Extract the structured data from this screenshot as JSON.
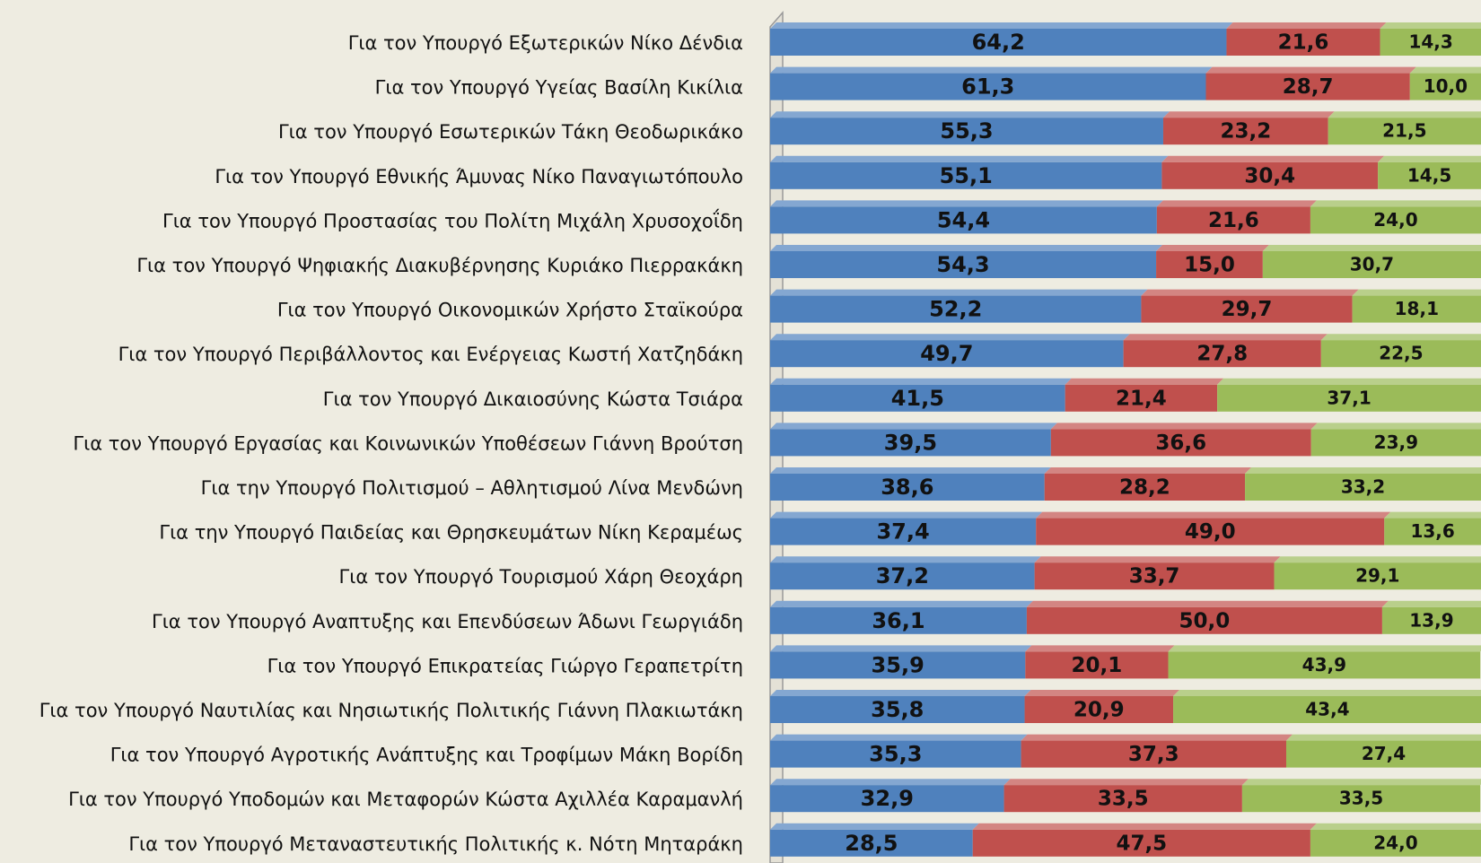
{
  "chart_data": {
    "type": "stacked-bar",
    "orientation": "horizontal",
    "categories": [
      "Για τον Υπουργό Εξωτερικών Νίκο Δένδια",
      "Για τον Υπουργό Υγείας Βασίλη  Κικίλια",
      "Για τον Υπουργό Εσωτερικών Τάκη Θεοδωρικάκο",
      "Για τον Υπουργό Εθνικής Άμυνας Νίκο Παναγιωτόπουλο",
      "Για τον Υπουργό Προστασίας του Πολίτη  Μιχάλη Χρυσοχοΐδη",
      "Για τον Υπουργό Ψηφιακής Διακυβέρνησης Κυριάκο Πιερρακάκη",
      "Για τον Υπουργό Οικονομικών Χρήστο Σταϊκούρα",
      "Για τον Υπουργό Περιβάλλοντος και Ενέργειας Κωστή Χατζηδάκη",
      "Για τον Υπουργό Δικαιοσύνης Κώστα Τσιάρα",
      "Για τον Υπουργό Εργασίας και Κοινωνικών Υποθέσεων Γιάννη Βρούτση",
      "Για την Υπουργό Πολιτισμού – Αθλητισμού  Λίνα Μενδώνη",
      "Για την Υπουργό Παιδείας και Θρησκευμάτων Νίκη Κεραμέως",
      "Για τον Υπουργό Τουρισμού Χάρη Θεοχάρη",
      "Για τον Υπουργό Αναπτυξης και Επενδύσεων Άδωνι Γεωργιάδη",
      "Για τον Υπουργό Επικρατείας Γιώργο Γεραπετρίτη",
      "Για τον Υπουργό Ναυτιλίας και Νησιωτικής Πολιτικής Γιάννη Πλακιωτάκη",
      "Για τον Υπουργό Αγροτικής Ανάπτυξης και Τροφίμων Μάκη  Βορίδη",
      "Για τον Υπουργό Υποδομών και Μεταφορών Κώστα Αχιλλέα Καραμανλή",
      "Για τον Υπουργό Μεταναστευτικής Πολιτικής κ. Νότη Μηταράκη"
    ],
    "series": [
      {
        "color": "#4f81bd",
        "values": [
          64.2,
          61.3,
          55.3,
          55.1,
          54.4,
          54.3,
          52.2,
          49.7,
          41.5,
          39.5,
          38.6,
          37.4,
          37.2,
          36.1,
          35.9,
          35.8,
          35.3,
          32.9,
          28.5
        ],
        "value_labels": [
          "64,2",
          "61,3",
          "55,3",
          "55,1",
          "54,4",
          "54,3",
          "52,2",
          "49,7",
          "41,5",
          "39,5",
          "38,6",
          "37,4",
          "37,2",
          "36,1",
          "35,9",
          "35,8",
          "35,3",
          "32,9",
          "28,5"
        ]
      },
      {
        "color": "#c0504d",
        "values": [
          21.6,
          28.7,
          23.2,
          30.4,
          21.6,
          15.0,
          29.7,
          27.8,
          21.4,
          36.6,
          28.2,
          49.0,
          33.7,
          50.0,
          20.1,
          20.9,
          37.3,
          33.5,
          47.5
        ],
        "value_labels": [
          "21,6",
          "28,7",
          "23,2",
          "30,4",
          "21,6",
          "15,0",
          "29,7",
          "27,8",
          "21,4",
          "36,6",
          "28,2",
          "49,0",
          "33,7",
          "50,0",
          "20,1",
          "20,9",
          "37,3",
          "33,5",
          "47,5"
        ]
      },
      {
        "color": "#9bbb59",
        "values": [
          14.3,
          10.0,
          21.5,
          14.5,
          24.0,
          30.7,
          18.1,
          22.5,
          37.1,
          23.9,
          33.2,
          13.6,
          29.1,
          13.9,
          43.9,
          43.4,
          27.4,
          33.5,
          24.0
        ],
        "value_labels": [
          "14,3",
          "10,0",
          "21,5",
          "14,5",
          "24,0",
          "30,7",
          "18,1",
          "22,5",
          "37,1",
          "23,9",
          "33,2",
          "13,6",
          "29,1",
          "13,9",
          "43,9",
          "43,4",
          "27,4",
          "33,5",
          "24,0"
        ]
      }
    ],
    "xlim": [
      0,
      100
    ]
  }
}
